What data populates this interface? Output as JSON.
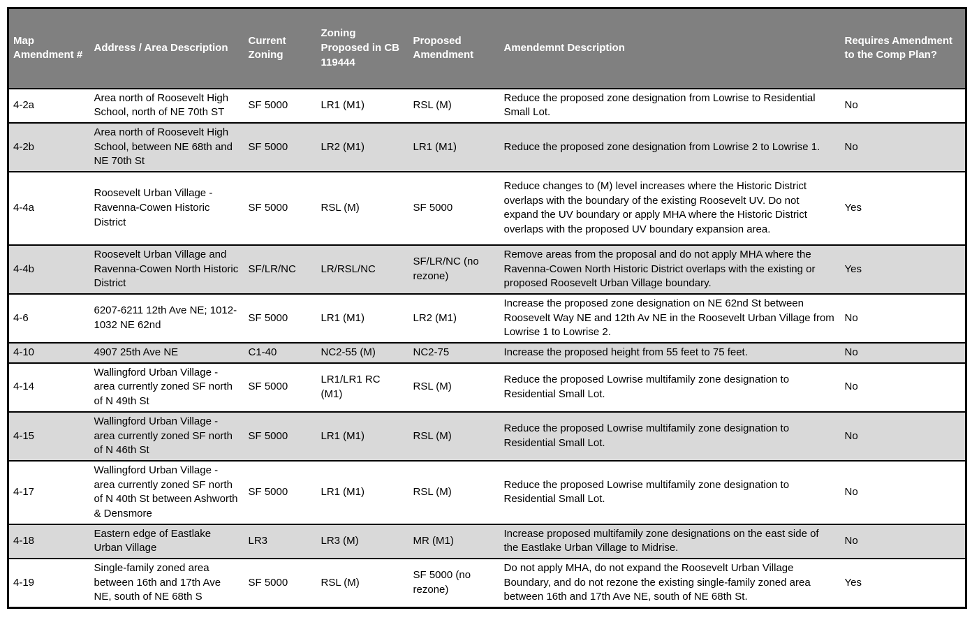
{
  "table": {
    "colors": {
      "header_bg": "#808080",
      "header_text": "#ffffff",
      "row_bg": "#ffffff",
      "row_alt_bg": "#d9d9d9",
      "border": "#000000",
      "text": "#000000"
    },
    "columns": [
      {
        "key": "id",
        "label": "Map Amendment #"
      },
      {
        "key": "address",
        "label": "Address / Area Description"
      },
      {
        "key": "current_zoning",
        "label": "Current Zoning"
      },
      {
        "key": "zoning_proposed_cb",
        "label": "Zoning Proposed in CB 119444"
      },
      {
        "key": "proposed_amendment",
        "label": "Proposed Amendment"
      },
      {
        "key": "description",
        "label": "Amendemnt Description"
      },
      {
        "key": "requires_comp_plan",
        "label": "Requires Amendment to the Comp Plan?"
      }
    ],
    "rows": [
      {
        "id": "4-2a",
        "address": "Area north of Roosevelt High School, north of NE 70th ST",
        "current_zoning": "SF 5000",
        "zoning_proposed_cb": "LR1 (M1)",
        "proposed_amendment": "RSL (M)",
        "description": "Reduce the proposed zone designation from Lowrise to Residential Small Lot.",
        "requires_comp_plan": "No"
      },
      {
        "id": "4-2b",
        "address": "Area north of Roosevelt High School, between NE 68th and NE 70th St",
        "current_zoning": "SF 5000",
        "zoning_proposed_cb": "LR2 (M1)",
        "proposed_amendment": "LR1 (M1)",
        "description": "Reduce the proposed zone designation from Lowrise 2 to Lowrise 1.",
        "requires_comp_plan": "No"
      },
      {
        "id": "4-4a",
        "address": "Roosevelt Urban Village - Ravenna-Cowen Historic District",
        "current_zoning": "SF 5000",
        "zoning_proposed_cb": "RSL (M)",
        "proposed_amendment": "SF 5000",
        "description": "Reduce changes to (M) level increases where the Historic District overlaps with the boundary of the existing Roosevelt UV. Do not expand the UV boundary or apply MHA where the Historic District overlaps with the proposed UV boundary expansion area.",
        "requires_comp_plan": "Yes"
      },
      {
        "id": "4-4b",
        "address": "Roosevelt Urban Village and Ravenna-Cowen North Historic District",
        "current_zoning": "SF/LR/NC",
        "zoning_proposed_cb": "LR/RSL/NC",
        "proposed_amendment": "SF/LR/NC (no rezone)",
        "description": "Remove areas from the proposal and do not apply MHA where the Ravenna-Cowen North Historic District overlaps with the  existing or proposed Roosevelt Urban Village boundary.",
        "requires_comp_plan": "Yes"
      },
      {
        "id": "4-6",
        "address": "6207-6211 12th Ave NE; 1012-1032 NE 62nd",
        "current_zoning": "SF 5000",
        "zoning_proposed_cb": "LR1 (M1)",
        "proposed_amendment": "LR2 (M1)",
        "description": "Increase the proposed zone designation on NE 62nd St between Roosevelt Way NE and 12th Av NE in the Roosevelt Urban Village from Lowrise 1 to Lowrise 2.",
        "requires_comp_plan": "No"
      },
      {
        "id": "4-10",
        "address": "4907 25th Ave NE",
        "current_zoning": "C1-40",
        "zoning_proposed_cb": "NC2-55 (M)",
        "proposed_amendment": "NC2-75",
        "description": "Increase the proposed height from 55 feet to 75 feet.",
        "requires_comp_plan": "No"
      },
      {
        "id": "4-14",
        "address": "Wallingford Urban Village - area currently zoned SF north of N 49th St",
        "current_zoning": "SF 5000",
        "zoning_proposed_cb": "LR1/LR1 RC (M1)",
        "proposed_amendment": "RSL (M)",
        "description": "Reduce the proposed Lowrise multifamily zone designation to Residential Small Lot.",
        "requires_comp_plan": "No"
      },
      {
        "id": "4-15",
        "address": "Wallingford Urban Village - area currently zoned SF north of N 46th St",
        "current_zoning": "SF 5000",
        "zoning_proposed_cb": "LR1 (M1)",
        "proposed_amendment": "RSL (M)",
        "description": "Reduce the proposed Lowrise multifamily zone designation to Residential Small Lot.",
        "requires_comp_plan": "No"
      },
      {
        "id": "4-17",
        "address": "Wallingford Urban Village - area currently zoned SF north of N 40th St between Ashworth & Densmore",
        "current_zoning": "SF 5000",
        "zoning_proposed_cb": "LR1 (M1)",
        "proposed_amendment": "RSL (M)",
        "description": "Reduce the proposed Lowrise multifamily zone designation to Residential Small Lot.",
        "requires_comp_plan": "No"
      },
      {
        "id": "4-18",
        "address": "Eastern edge of Eastlake Urban Village",
        "current_zoning": "LR3",
        "zoning_proposed_cb": "LR3 (M)",
        "proposed_amendment": "MR (M1)",
        "description": "Increase proposed multifamily zone designations on the east side of the Eastlake Urban Village to Midrise.",
        "requires_comp_plan": "No"
      },
      {
        "id": "4-19",
        "address": "Single-family zoned area between 16th and 17th Ave NE, south of NE 68th S",
        "current_zoning": "SF 5000",
        "zoning_proposed_cb": "RSL (M)",
        "proposed_amendment": "SF 5000 (no rezone)",
        "description": "Do not apply MHA, do not expand the Roosevelt Urban Village Boundary, and do not rezone the existing single-family zoned area between 16th and 17th Ave NE, south of NE 68th St.",
        "requires_comp_plan": "Yes"
      }
    ]
  }
}
